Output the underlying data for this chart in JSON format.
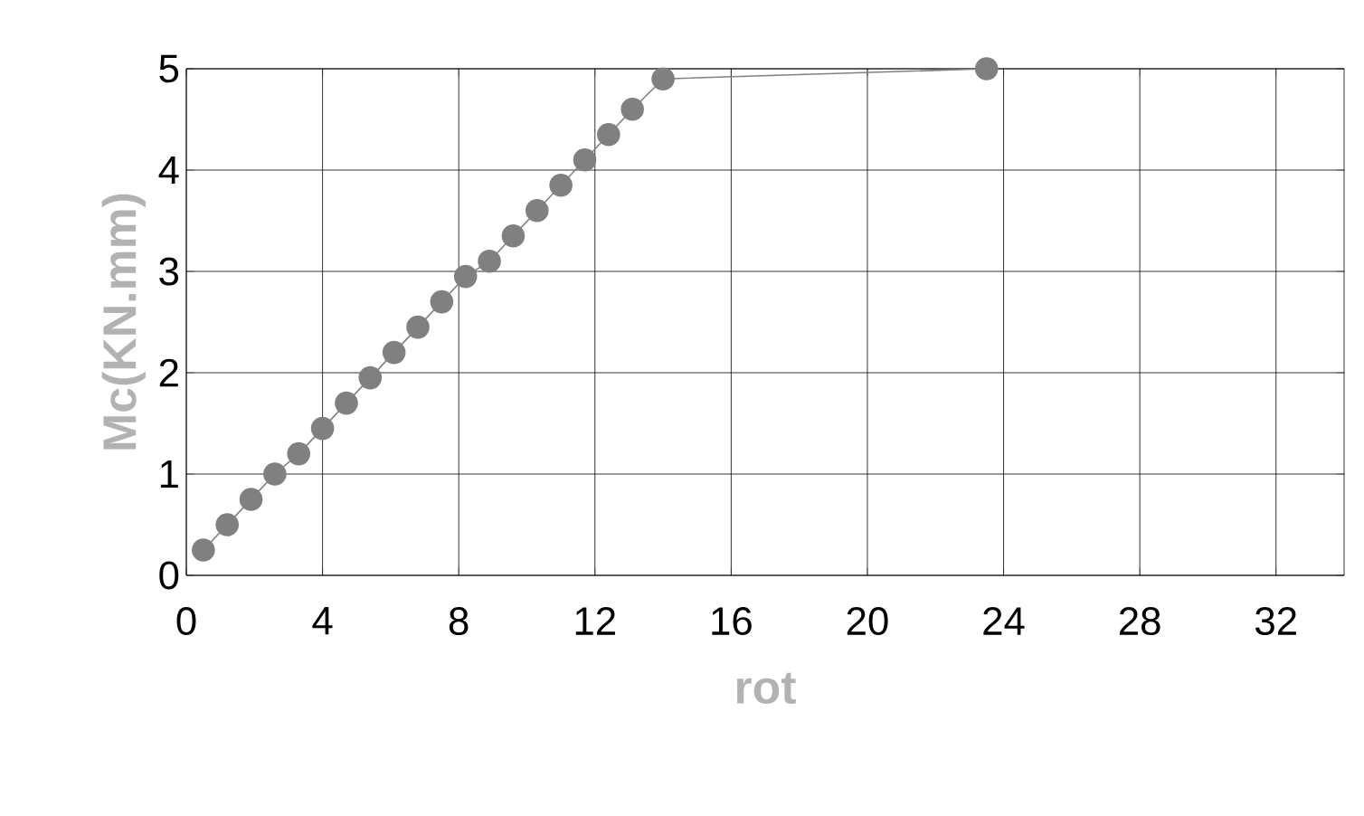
{
  "chart_data": {
    "type": "line",
    "xlabel": "rot",
    "ylabel": "Mc(KN.mm)",
    "x": [
      0.5,
      1.2,
      1.9,
      2.6,
      3.3,
      4.0,
      4.7,
      5.4,
      6.1,
      6.8,
      7.5,
      8.2,
      8.9,
      9.6,
      10.3,
      11.0,
      11.7,
      12.4,
      13.1,
      14.0,
      23.5
    ],
    "series": [
      {
        "color": "#808080",
        "values": [
          0.25,
          0.5,
          0.75,
          1.0,
          1.2,
          1.45,
          1.7,
          1.95,
          2.2,
          2.45,
          2.7,
          2.95,
          3.1,
          3.35,
          3.6,
          3.85,
          4.1,
          4.35,
          4.6,
          4.9,
          5.0
        ]
      }
    ],
    "xlim": [
      0,
      34
    ],
    "ylim": [
      0,
      5
    ],
    "xticks": [
      0,
      4,
      8,
      12,
      16,
      20,
      24,
      28,
      32
    ],
    "yticks": [
      0,
      1,
      2,
      3,
      4,
      5
    ],
    "grid": true,
    "marker": "circle",
    "line_style": "solid"
  }
}
